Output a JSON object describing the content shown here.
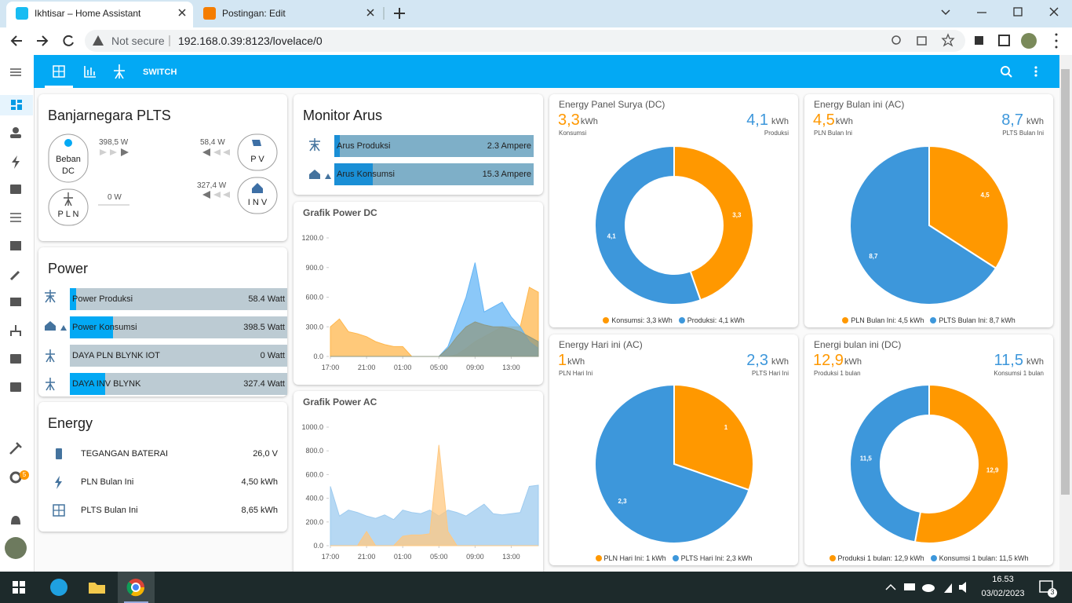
{
  "browser": {
    "tabs": [
      "Ikhtisar – Home Assistant",
      "Postingan: Edit"
    ],
    "security": "Not secure",
    "url": "192.168.0.39:8123/lovelace/0"
  },
  "toolbar": {
    "tab_label": "SWITCH"
  },
  "sidebar": {
    "badge": "5"
  },
  "plts_card": {
    "title": "Banjarnegara PLTS",
    "nodes": {
      "load": [
        "Beban",
        "DC"
      ],
      "grid": "P L N",
      "pv": "P V",
      "inverter": "I N V"
    },
    "flows": {
      "load": "398,5 W",
      "pv": "58,4 W",
      "grid": "0 W",
      "inverter": "327,4 W"
    }
  },
  "power_card": {
    "title": "Power",
    "scale_max": 2000,
    "rows": [
      {
        "name": "Power Produksi",
        "value": 58.4,
        "label": "58.4 Watt"
      },
      {
        "name": "Power Konsumsi",
        "value": 398.5,
        "label": "398.5 Watt"
      },
      {
        "name": "DAYA PLN BLYNK IOT",
        "value": 0,
        "label": "0 Watt"
      },
      {
        "name": "DAYA INV BLYNK",
        "value": 327.4,
        "label": "327.4 Watt"
      }
    ]
  },
  "arus_card": {
    "title": "Monitor Arus",
    "scale_max": 80,
    "rows": [
      {
        "name": "Arus Produksi",
        "value": 2.3,
        "label": "2.3 Ampere"
      },
      {
        "name": "Arus Konsumsi",
        "value": 15.3,
        "label": "15.3 Ampere"
      }
    ]
  },
  "energy_card": {
    "title": "Energy",
    "rows": [
      {
        "name": "TEGANGAN BATERAI",
        "value": "26,0 V"
      },
      {
        "name": "PLN Bulan Ini",
        "value": "4,50 kWh"
      },
      {
        "name": "PLTS Bulan Ini",
        "value": "8,65 kWh"
      }
    ]
  },
  "dc_chart": {
    "type": "area",
    "title": "Grafik Power DC",
    "x": [
      "17:00",
      "18:00",
      "19:00",
      "20:00",
      "21:00",
      "22:00",
      "23:00",
      "00:00",
      "01:00",
      "02:00",
      "03:00",
      "04:00",
      "05:00",
      "06:00",
      "07:00",
      "08:00",
      "09:00",
      "10:00",
      "11:00",
      "12:00",
      "13:00",
      "14:00",
      "15:00",
      "16:00"
    ],
    "xticks": [
      "17:00",
      "21:00",
      "01:00",
      "05:00",
      "09:00",
      "13:00"
    ],
    "ylim": [
      0,
      1200
    ],
    "yticks": [
      {
        "value": 0,
        "label": "0.0"
      },
      {
        "value": 300,
        "label": "300.0"
      },
      {
        "value": 600,
        "label": "600.0"
      },
      {
        "value": 900,
        "label": "900.0"
      },
      {
        "value": 1200,
        "label": "1200.0"
      }
    ],
    "series": [
      {
        "color": "#ffb74d",
        "values": [
          300,
          380,
          250,
          230,
          200,
          150,
          120,
          100,
          100,
          0,
          0,
          0,
          0,
          0,
          20,
          80,
          150,
          200,
          250,
          300,
          300,
          300,
          700,
          650
        ]
      },
      {
        "color": "#64b5f6",
        "values": [
          0,
          0,
          0,
          0,
          0,
          0,
          0,
          0,
          0,
          0,
          0,
          0,
          0,
          100,
          350,
          600,
          950,
          450,
          500,
          550,
          400,
          300,
          150,
          80
        ]
      },
      {
        "color": "#8d9a86",
        "values": [
          0,
          0,
          0,
          0,
          0,
          0,
          0,
          0,
          0,
          0,
          0,
          0,
          0,
          80,
          200,
          300,
          350,
          320,
          300,
          300,
          280,
          250,
          200,
          150
        ]
      }
    ]
  },
  "ac_chart": {
    "type": "area",
    "title": "Grafik Power AC",
    "x": [
      "17:00",
      "18:00",
      "19:00",
      "20:00",
      "21:00",
      "22:00",
      "23:00",
      "00:00",
      "01:00",
      "02:00",
      "03:00",
      "04:00",
      "05:00",
      "06:00",
      "07:00",
      "08:00",
      "09:00",
      "10:00",
      "11:00",
      "12:00",
      "13:00",
      "14:00",
      "15:00",
      "16:00"
    ],
    "xticks": [
      "17:00",
      "21:00",
      "01:00",
      "05:00",
      "09:00",
      "13:00"
    ],
    "ylim": [
      0,
      1000
    ],
    "yticks": [
      {
        "value": 0,
        "label": "0.0"
      },
      {
        "value": 200,
        "label": "200.0"
      },
      {
        "value": 400,
        "label": "400.0"
      },
      {
        "value": 600,
        "label": "600.0"
      },
      {
        "value": 800,
        "label": "800.0"
      },
      {
        "value": 1000,
        "label": "1000.0"
      }
    ],
    "series": [
      {
        "color": "#9ecbef",
        "values": [
          500,
          250,
          300,
          280,
          250,
          230,
          260,
          220,
          300,
          280,
          270,
          300,
          250,
          300,
          280,
          250,
          300,
          350,
          270,
          260,
          270,
          280,
          500,
          510
        ]
      },
      {
        "color": "#ffc880",
        "values": [
          0,
          0,
          0,
          0,
          120,
          0,
          0,
          0,
          80,
          90,
          90,
          100,
          850,
          120,
          0,
          0,
          0,
          0,
          0,
          0,
          0,
          0,
          0,
          0
        ]
      }
    ]
  },
  "donuts": [
    {
      "title": "Energy Panel Surya (DC)",
      "left": {
        "value": "3,3",
        "unit": "kWh",
        "label": "Konsumsi"
      },
      "right": {
        "value": "4,1",
        "unit": "kWh",
        "label": "Produksi"
      },
      "chart": {
        "type": "pie",
        "donut": true,
        "values": [
          3.3,
          4.1
        ],
        "value_labels": [
          "3,3",
          "4,1"
        ],
        "colors": [
          "#ff9800",
          "#3d97db"
        ],
        "legend": [
          "Konsumsi: 3,3 kWh",
          "Produksi: 4,1 kWh"
        ]
      }
    },
    {
      "title": "Energy Bulan ini (AC)",
      "left": {
        "value": "4,5",
        "unit": "kWh",
        "label": "PLN Bulan Ini"
      },
      "right": {
        "value": "8,7",
        "unit": "kWh",
        "label": "PLTS Bulan Ini"
      },
      "chart": {
        "type": "pie",
        "donut": false,
        "values": [
          4.5,
          8.7
        ],
        "value_labels": [
          "4,5",
          "8,7"
        ],
        "colors": [
          "#ff9800",
          "#3d97db"
        ],
        "legend": [
          "PLN Bulan Ini: 4,5 kWh",
          "PLTS Bulan Ini: 8,7 kWh"
        ]
      }
    },
    {
      "title": "Energy Hari ini (AC)",
      "left": {
        "value": "1",
        "unit": "kWh",
        "label": "PLN Hari Ini"
      },
      "right": {
        "value": "2,3",
        "unit": "kWh",
        "label": "PLTS Hari Ini"
      },
      "chart": {
        "type": "pie",
        "donut": false,
        "values": [
          1,
          2.3
        ],
        "value_labels": [
          "1",
          "2,3"
        ],
        "colors": [
          "#ff9800",
          "#3d97db"
        ],
        "legend": [
          "PLN Hari Ini: 1 kWh",
          "PLTS Hari Ini: 2,3 kWh"
        ]
      }
    },
    {
      "title": "Energi bulan ini (DC)",
      "left": {
        "value": "12,9",
        "unit": "kWh",
        "label": "Produksi 1 bulan"
      },
      "right": {
        "value": "11,5",
        "unit": "kWh",
        "label": "Konsumsi 1 bulan"
      },
      "chart": {
        "type": "pie",
        "donut": true,
        "values": [
          12.9,
          11.5
        ],
        "value_labels": [
          "12,9",
          "11,5"
        ],
        "colors": [
          "#ff9800",
          "#3d97db"
        ],
        "legend": [
          "Produksi 1 bulan: 12,9 kWh",
          "Konsumsi 1 bulan: 11,5 kWh"
        ]
      }
    }
  ],
  "taskbar": {
    "time": "16.53",
    "date": "03/02/2023",
    "notifications": "3"
  }
}
